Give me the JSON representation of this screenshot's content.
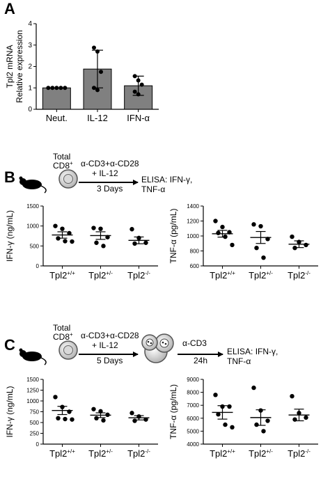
{
  "figure": {
    "panels": [
      {
        "letter": "A"
      },
      {
        "letter": "B"
      },
      {
        "letter": "C"
      }
    ]
  },
  "schemes": {
    "B": {
      "cell_label_line1": "Total",
      "cell_label_line2": "CD8",
      "cell_label_sup": "+",
      "stim_line1": "α-CD3+α-CD28",
      "stim_line2": "+ IL-12",
      "duration": "3 Days",
      "readout_line1": "ELISA: IFN-γ,",
      "readout_line2": "TNF-α"
    },
    "C": {
      "cell_label_line1": "Total",
      "cell_label_line2": "CD8",
      "cell_label_sup": "+",
      "stim_line1": "α-CD3+α-CD28",
      "stim_line2": "+ IL-12",
      "duration": "5 Days",
      "restim": "α-CD3",
      "restim_duration": "24h",
      "readout_line1": "ELISA: IFN-γ,",
      "readout_line2": "TNF-α"
    }
  },
  "chart_data": [
    {
      "id": "A",
      "type": "bar",
      "title": "",
      "ylabel_line1": "Tpl2 mRNA",
      "ylabel_line2": "Relative expression",
      "ylim": [
        0,
        4
      ],
      "yticks": [
        0,
        1,
        2,
        3,
        4
      ],
      "categories": [
        "Neut.",
        "IL-12",
        "IFN-α"
      ],
      "values": [
        1.0,
        1.88,
        1.1
      ],
      "error": [
        0.0,
        0.88,
        0.45
      ],
      "points": [
        [
          1,
          1,
          1,
          1,
          1
        ],
        [
          2.88,
          2.7,
          1.75,
          1.0,
          0.9
        ],
        [
          1.55,
          1.35,
          1.15,
          0.82,
          0.7
        ]
      ],
      "bar_color": "#808080",
      "grid": false
    },
    {
      "id": "B-left",
      "type": "scatter",
      "ylabel": "IFN-γ (ng/mL)",
      "ylim": [
        0,
        1500
      ],
      "yticks": [
        0,
        500,
        1000,
        1500
      ],
      "categories": [
        {
          "base": "Tpl2",
          "sup": "+/+"
        },
        {
          "base": "Tpl2",
          "sup": "+/-"
        },
        {
          "base": "Tpl2",
          "sup": "-/-"
        }
      ],
      "mean": [
        775,
        760,
        640
      ],
      "sem": [
        80,
        95,
        85
      ],
      "points": [
        [
          1000,
          930,
          820,
          690,
          620,
          610
        ],
        [
          950,
          930,
          720,
          580,
          500
        ],
        [
          920,
          700,
          580,
          560
        ]
      ],
      "grid": false
    },
    {
      "id": "B-right",
      "type": "scatter",
      "ylabel": "TNF-α (pg/mL)",
      "ylim": [
        600,
        1400
      ],
      "yticks": [
        600,
        800,
        1000,
        1200,
        1400
      ],
      "categories": [
        {
          "base": "Tpl2",
          "sup": "+/+"
        },
        {
          "base": "Tpl2",
          "sup": "+/-"
        },
        {
          "base": "Tpl2",
          "sup": "-/-"
        }
      ],
      "mean": [
        1030,
        980,
        890
      ],
      "sem": [
        45,
        80,
        45
      ],
      "points": [
        [
          1200,
          1120,
          1050,
          1040,
          990,
          880
        ],
        [
          1155,
          1130,
          960,
          840,
          710
        ],
        [
          990,
          920,
          880,
          840
        ]
      ],
      "grid": false
    },
    {
      "id": "C-left",
      "type": "scatter",
      "ylabel": "IFN-γ (ng/mL)",
      "ylim": [
        0,
        1500
      ],
      "yticks": [
        0,
        250,
        500,
        750,
        1000,
        1250,
        1500
      ],
      "categories": [
        {
          "base": "Tpl2",
          "sup": "+/+"
        },
        {
          "base": "Tpl2",
          "sup": "+/-"
        },
        {
          "base": "Tpl2",
          "sup": "-/-"
        }
      ],
      "mean": [
        780,
        670,
        610
      ],
      "sem": [
        95,
        55,
        50
      ],
      "points": [
        [
          1090,
          860,
          750,
          600,
          580,
          570
        ],
        [
          810,
          760,
          680,
          600,
          550
        ],
        [
          720,
          640,
          570,
          540
        ]
      ],
      "grid": false
    },
    {
      "id": "C-right",
      "type": "scatter",
      "ylabel": "TNF-α (pg/mL)",
      "ylim": [
        4000,
        9000
      ],
      "yticks": [
        4000,
        5000,
        6000,
        7000,
        8000,
        9000
      ],
      "categories": [
        {
          "base": "Tpl2",
          "sup": "+/+"
        },
        {
          "base": "Tpl2",
          "sup": "+/-"
        },
        {
          "base": "Tpl2",
          "sup": "-/-"
        }
      ],
      "mean": [
        6450,
        6050,
        6250
      ],
      "sem": [
        520,
        600,
        450
      ],
      "points": [
        [
          7800,
          6900,
          6900,
          6300,
          5500,
          5300
        ],
        [
          8350,
          6600,
          5800,
          5500,
          5000
        ],
        [
          7700,
          6400,
          6050,
          5900
        ]
      ],
      "grid": false
    }
  ]
}
